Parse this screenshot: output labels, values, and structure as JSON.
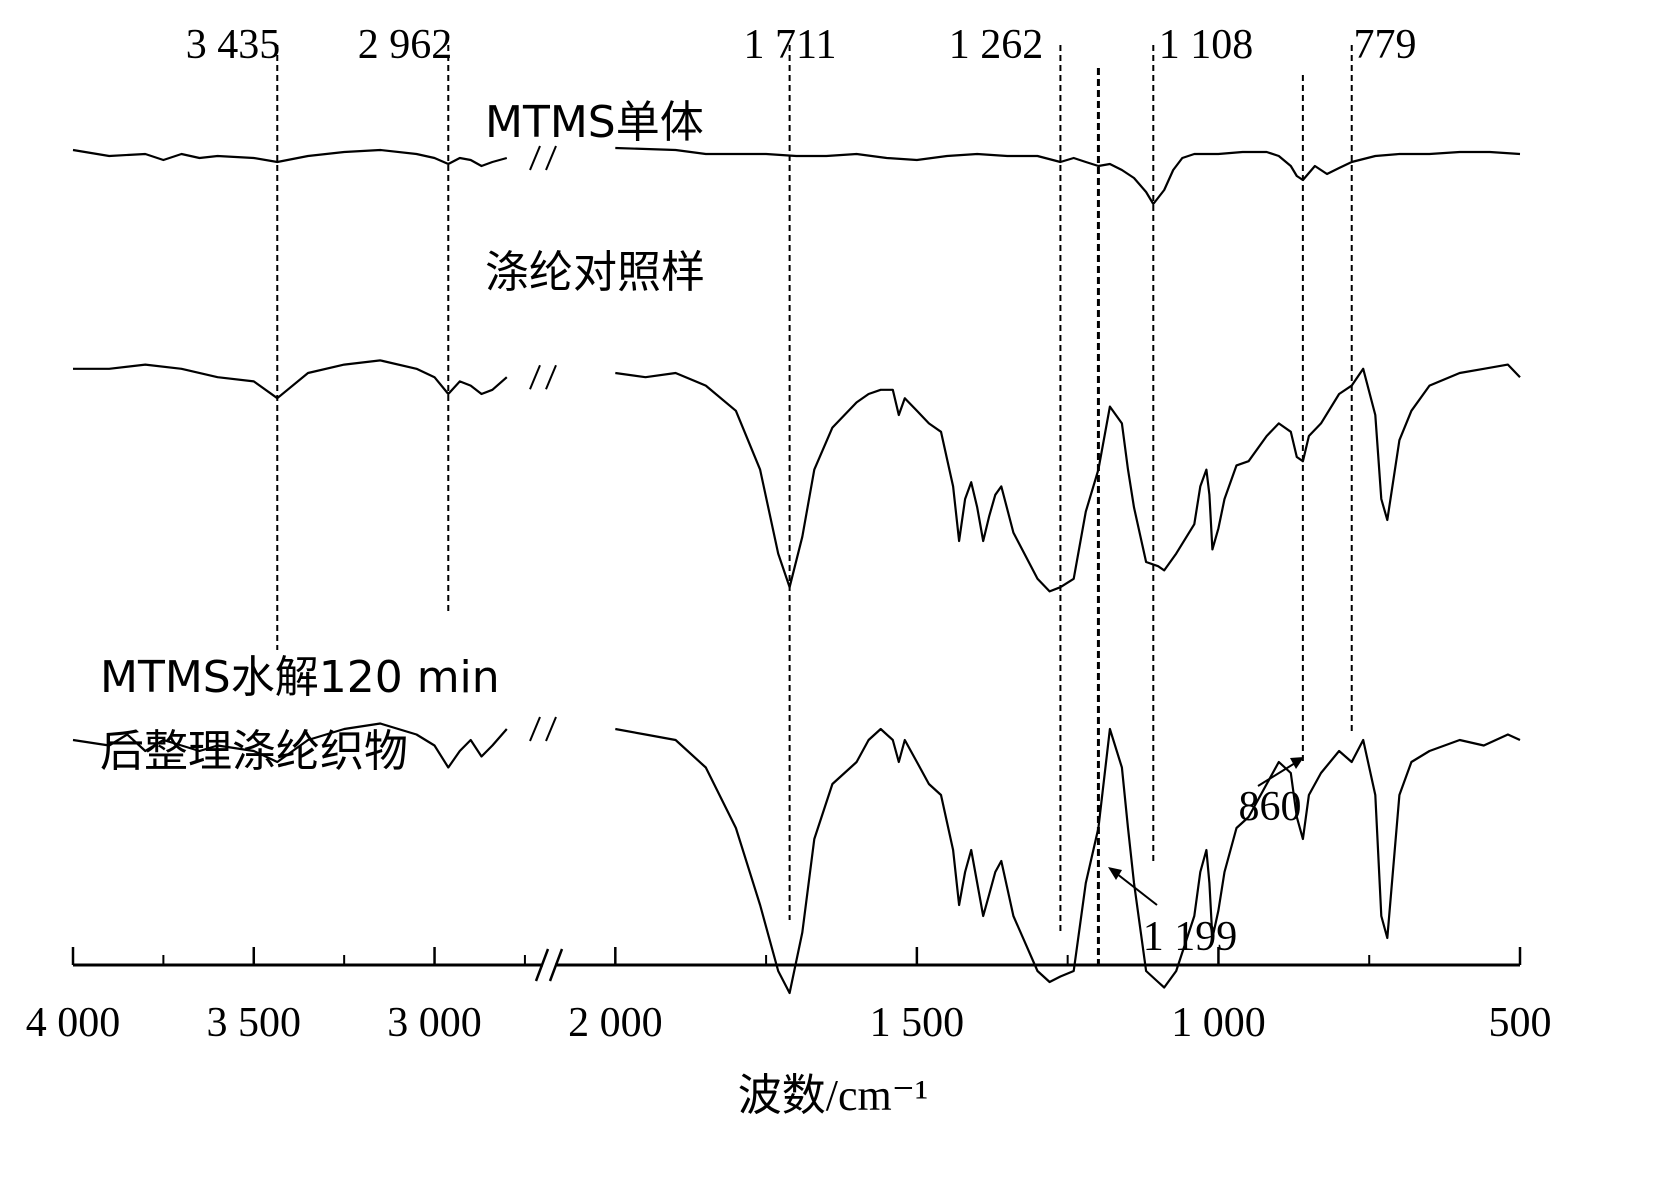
{
  "chart_data": {
    "type": "line",
    "title": "",
    "xlabel": "波数/cm⁻¹",
    "ylabel": "",
    "x_reversed": true,
    "axis_break": true,
    "xlim_segments": [
      [
        4000,
        2700
      ],
      [
        2100,
        500
      ]
    ],
    "xticks": [
      {
        "value": 4000,
        "label": "4 000"
      },
      {
        "value": 3500,
        "label": "3 500"
      },
      {
        "value": 3000,
        "label": "3 000"
      },
      {
        "value": 2000,
        "label": "2 000"
      },
      {
        "value": 1500,
        "label": "1 500"
      },
      {
        "value": 1000,
        "label": "1 000"
      },
      {
        "value": 500,
        "label": "500"
      }
    ],
    "peak_labels": [
      {
        "value": 3435,
        "label": "3 435"
      },
      {
        "value": 2962,
        "label": "2 962"
      },
      {
        "value": 1711,
        "label": "1 711"
      },
      {
        "value": 1262,
        "label": "1 262"
      },
      {
        "value": 1108,
        "label": "1 108"
      },
      {
        "value": 779,
        "label": "779"
      },
      {
        "value": 1199,
        "label": "1 199"
      },
      {
        "value": 860,
        "label": "860"
      }
    ],
    "series": [
      {
        "name": "MTMS单体",
        "x": [
          4000,
          3900,
          3800,
          3750,
          3700,
          3650,
          3600,
          3500,
          3435,
          3350,
          3250,
          3150,
          3050,
          3000,
          2962,
          2930,
          2900,
          2870,
          2840,
          2800,
          2000,
          1900,
          1850,
          1800,
          1750,
          1700,
          1650,
          1600,
          1550,
          1500,
          1450,
          1400,
          1350,
          1300,
          1262,
          1240,
          1220,
          1199,
          1180,
          1160,
          1140,
          1120,
          1108,
          1090,
          1075,
          1060,
          1040,
          1000,
          960,
          920,
          900,
          880,
          870,
          860,
          840,
          820,
          800,
          779,
          740,
          700,
          650,
          600,
          550,
          500
        ],
        "y": [
          0.9,
          0.87,
          0.88,
          0.85,
          0.88,
          0.86,
          0.87,
          0.86,
          0.84,
          0.87,
          0.89,
          0.9,
          0.88,
          0.86,
          0.83,
          0.86,
          0.85,
          0.82,
          0.84,
          0.86,
          0.91,
          0.9,
          0.88,
          0.88,
          0.88,
          0.87,
          0.87,
          0.88,
          0.86,
          0.85,
          0.87,
          0.88,
          0.87,
          0.87,
          0.84,
          0.86,
          0.84,
          0.82,
          0.83,
          0.8,
          0.76,
          0.69,
          0.63,
          0.7,
          0.8,
          0.86,
          0.88,
          0.88,
          0.89,
          0.89,
          0.87,
          0.82,
          0.77,
          0.75,
          0.82,
          0.78,
          0.81,
          0.84,
          0.87,
          0.88,
          0.88,
          0.89,
          0.89,
          0.88
        ]
      },
      {
        "name": "涤纶对照样",
        "x": [
          4000,
          3900,
          3800,
          3700,
          3600,
          3500,
          3435,
          3350,
          3250,
          3150,
          3050,
          3000,
          2962,
          2930,
          2900,
          2870,
          2840,
          2800,
          2000,
          1950,
          1900,
          1850,
          1800,
          1760,
          1730,
          1711,
          1690,
          1670,
          1640,
          1600,
          1580,
          1560,
          1540,
          1530,
          1520,
          1500,
          1480,
          1460,
          1440,
          1430,
          1420,
          1410,
          1400,
          1390,
          1380,
          1370,
          1360,
          1340,
          1300,
          1280,
          1262,
          1240,
          1220,
          1199,
          1180,
          1160,
          1150,
          1140,
          1120,
          1100,
          1090,
          1070,
          1040,
          1030,
          1020,
          1015,
          1010,
          1000,
          990,
          970,
          950,
          920,
          900,
          880,
          870,
          860,
          850,
          830,
          800,
          779,
          760,
          740,
          730,
          720,
          700,
          680,
          650,
          600,
          560,
          520,
          500
        ],
        "y": [
          0.86,
          0.86,
          0.87,
          0.86,
          0.84,
          0.83,
          0.79,
          0.85,
          0.87,
          0.88,
          0.86,
          0.84,
          0.8,
          0.83,
          0.82,
          0.8,
          0.81,
          0.84,
          0.85,
          0.84,
          0.85,
          0.82,
          0.76,
          0.62,
          0.42,
          0.34,
          0.46,
          0.62,
          0.72,
          0.78,
          0.8,
          0.81,
          0.81,
          0.75,
          0.79,
          0.76,
          0.73,
          0.71,
          0.58,
          0.45,
          0.55,
          0.59,
          0.53,
          0.45,
          0.51,
          0.56,
          0.58,
          0.47,
          0.36,
          0.33,
          0.34,
          0.36,
          0.52,
          0.62,
          0.77,
          0.73,
          0.62,
          0.53,
          0.4,
          0.39,
          0.38,
          0.42,
          0.49,
          0.58,
          0.62,
          0.56,
          0.43,
          0.48,
          0.55,
          0.63,
          0.64,
          0.7,
          0.73,
          0.71,
          0.65,
          0.64,
          0.7,
          0.73,
          0.8,
          0.82,
          0.86,
          0.75,
          0.55,
          0.5,
          0.69,
          0.76,
          0.82,
          0.85,
          0.86,
          0.87,
          0.84
        ]
      },
      {
        "name": "MTMS水解120 min 后整理涤纶织物",
        "x": [
          4000,
          3900,
          3850,
          3800,
          3750,
          3700,
          3650,
          3600,
          3500,
          3435,
          3350,
          3250,
          3150,
          3050,
          3000,
          2962,
          2930,
          2900,
          2870,
          2840,
          2800,
          2000,
          1950,
          1900,
          1850,
          1800,
          1760,
          1730,
          1711,
          1690,
          1670,
          1640,
          1600,
          1580,
          1560,
          1540,
          1530,
          1520,
          1500,
          1480,
          1460,
          1440,
          1430,
          1420,
          1410,
          1400,
          1390,
          1380,
          1370,
          1360,
          1340,
          1300,
          1280,
          1262,
          1240,
          1220,
          1199,
          1180,
          1160,
          1150,
          1140,
          1120,
          1100,
          1090,
          1070,
          1040,
          1030,
          1020,
          1015,
          1010,
          1000,
          990,
          970,
          950,
          920,
          900,
          880,
          870,
          860,
          850,
          830,
          800,
          779,
          760,
          740,
          730,
          720,
          700,
          680,
          650,
          600,
          560,
          520,
          500
        ],
        "y": [
          0.6,
          0.59,
          0.61,
          0.58,
          0.6,
          0.59,
          0.58,
          0.59,
          0.58,
          0.56,
          0.6,
          0.62,
          0.63,
          0.61,
          0.59,
          0.55,
          0.58,
          0.6,
          0.57,
          0.59,
          0.62,
          0.62,
          0.61,
          0.6,
          0.55,
          0.44,
          0.3,
          0.18,
          0.14,
          0.25,
          0.42,
          0.52,
          0.56,
          0.6,
          0.62,
          0.6,
          0.56,
          0.6,
          0.56,
          0.52,
          0.5,
          0.4,
          0.3,
          0.36,
          0.4,
          0.34,
          0.28,
          0.32,
          0.36,
          0.38,
          0.28,
          0.18,
          0.16,
          0.17,
          0.18,
          0.34,
          0.44,
          0.62,
          0.55,
          0.44,
          0.34,
          0.18,
          0.16,
          0.15,
          0.18,
          0.28,
          0.36,
          0.4,
          0.34,
          0.24,
          0.29,
          0.36,
          0.44,
          0.46,
          0.52,
          0.56,
          0.54,
          0.46,
          0.42,
          0.5,
          0.54,
          0.58,
          0.56,
          0.6,
          0.5,
          0.28,
          0.24,
          0.5,
          0.56,
          0.58,
          0.6,
          0.59,
          0.61,
          0.6
        ]
      }
    ],
    "peak_lines_top": [
      3435,
      2962,
      1711,
      1262,
      1108,
      779
    ],
    "peak_lines_bottom_extra": [
      1199,
      860
    ]
  }
}
